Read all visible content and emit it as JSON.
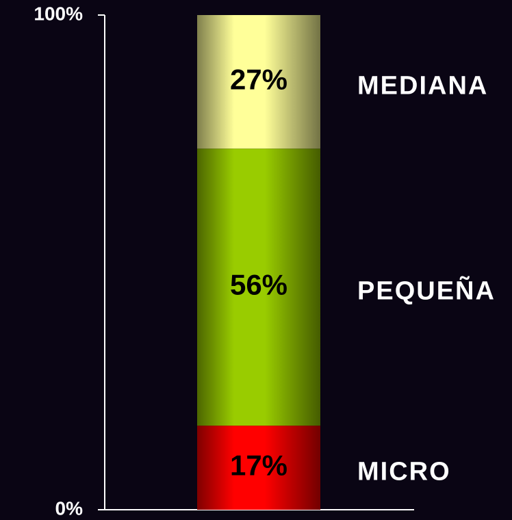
{
  "chart_data": {
    "type": "stacked_bar",
    "categories": [
      null
    ],
    "series": [
      {
        "name": "MICRO",
        "color": "#ff0000",
        "values": [
          17
        ],
        "value_labels": [
          "17%"
        ]
      },
      {
        "name": "PEQUEÑA",
        "color": "#99cc00",
        "values": [
          56
        ],
        "value_labels": [
          "56%"
        ]
      },
      {
        "name": "MEDIANA",
        "color": "#ffff99",
        "values": [
          27
        ],
        "value_labels": [
          "27%"
        ]
      }
    ],
    "ylim": [
      0,
      100
    ],
    "yticks": [
      {
        "value": 0,
        "label": "0%"
      },
      {
        "value": 100,
        "label": "100%"
      }
    ]
  }
}
